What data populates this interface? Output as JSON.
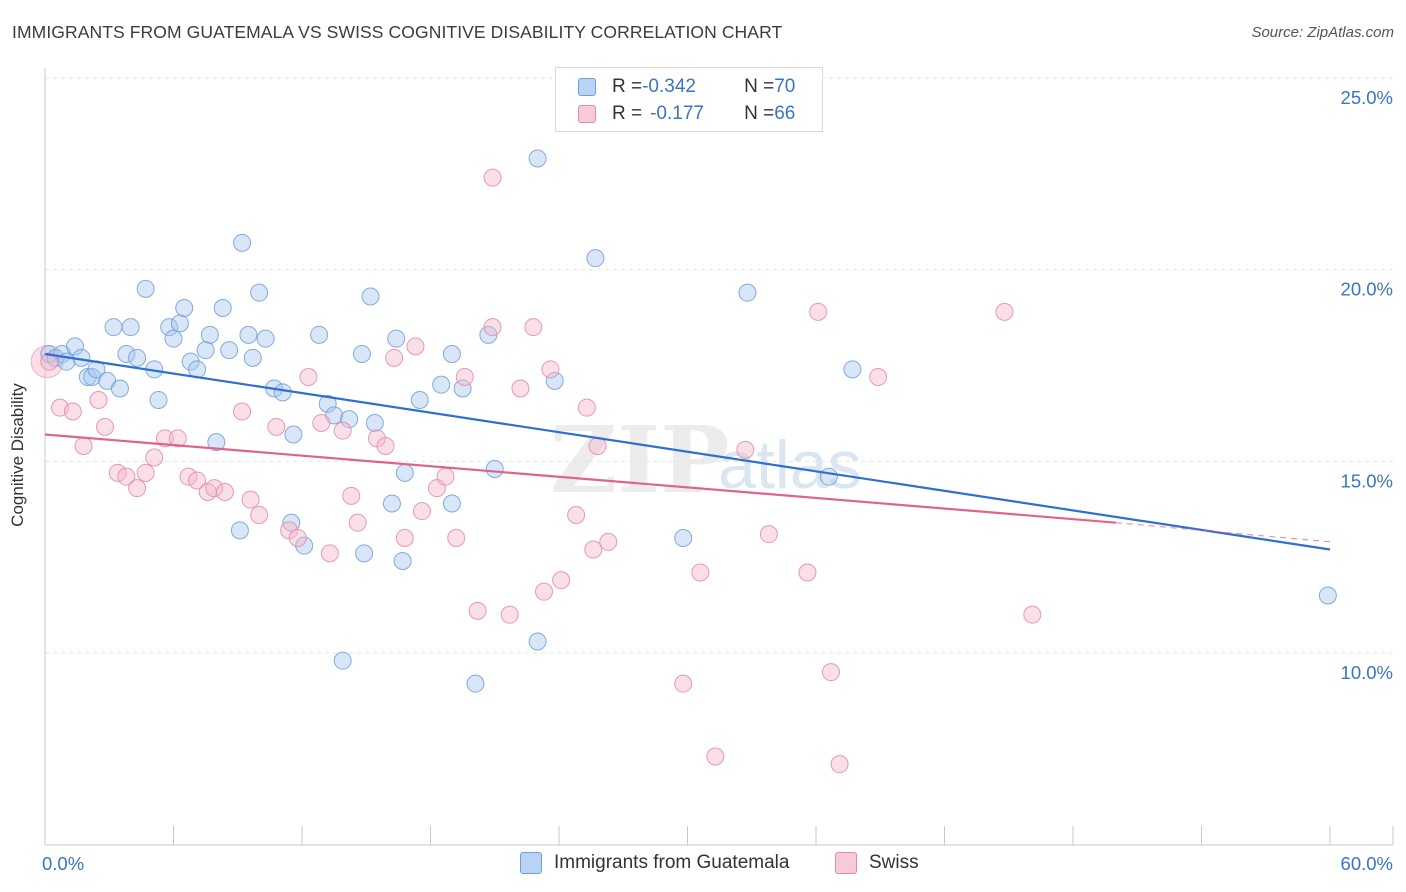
{
  "title": "IMMIGRANTS FROM GUATEMALA VS SWISS COGNITIVE DISABILITY CORRELATION CHART",
  "source": "Source: ZipAtlas.com",
  "watermark": {
    "zip": "ZIP",
    "atlas": "atlas"
  },
  "legend_top": [
    {
      "r_label": "R = ",
      "r_value": "-0.342",
      "n_label": "N = ",
      "n_value": "70"
    },
    {
      "r_label": "R = ",
      "r_value": "-0.177",
      "n_label": "N = ",
      "n_value": "66"
    }
  ],
  "legend_bottom": [
    "Immigrants from Guatemala",
    "Swiss"
  ],
  "colors": {
    "blue_fill": "#a9c8f0",
    "blue_stroke": "#6f9fd8",
    "blue_line": "#2f6fd0",
    "pink_fill": "#f5b8cc",
    "pink_stroke": "#e48aa8",
    "pink_line": "#e0628e",
    "tick_text": "#3a75c4",
    "grid": "#e4e4e4"
  },
  "chart_data": {
    "type": "scatter",
    "title": "IMMIGRANTS FROM GUATEMALA VS SWISS COGNITIVE DISABILITY CORRELATION CHART",
    "xlabel": "",
    "ylabel": "Cognitive Disability",
    "xlim": [
      0,
      60
    ],
    "ylim": [
      5,
      26
    ],
    "x_tick_labels": [
      "0.0%",
      "60.0%"
    ],
    "y_ticks": [
      10,
      15,
      20,
      25
    ],
    "y_tick_labels": [
      "10.0%",
      "15.0%",
      "20.0%",
      "25.0%"
    ],
    "grid": true,
    "legend_position": "top-center",
    "series": [
      {
        "name": "Immigrants from Guatemala",
        "r": -0.342,
        "n": 70,
        "trend": {
          "x": [
            0,
            60
          ],
          "y": [
            17.8,
            12.7
          ]
        },
        "points": [
          [
            0.2,
            17.8
          ],
          [
            0.5,
            17.7
          ],
          [
            0.8,
            17.8
          ],
          [
            1.0,
            17.6
          ],
          [
            1.4,
            18.0
          ],
          [
            1.7,
            17.7
          ],
          [
            2.0,
            17.2
          ],
          [
            2.2,
            17.2
          ],
          [
            2.4,
            17.4
          ],
          [
            2.9,
            17.1
          ],
          [
            3.5,
            16.9
          ],
          [
            3.2,
            18.5
          ],
          [
            3.8,
            17.8
          ],
          [
            4.0,
            18.5
          ],
          [
            4.3,
            17.7
          ],
          [
            4.7,
            19.5
          ],
          [
            5.1,
            17.4
          ],
          [
            5.3,
            16.6
          ],
          [
            5.8,
            18.5
          ],
          [
            6.0,
            18.2
          ],
          [
            6.3,
            18.6
          ],
          [
            6.5,
            19.0
          ],
          [
            6.8,
            17.6
          ],
          [
            7.1,
            17.4
          ],
          [
            7.5,
            17.9
          ],
          [
            7.7,
            18.3
          ],
          [
            8.0,
            15.5
          ],
          [
            8.3,
            19.0
          ],
          [
            8.6,
            17.9
          ],
          [
            9.1,
            13.2
          ],
          [
            9.2,
            20.7
          ],
          [
            9.5,
            18.3
          ],
          [
            9.7,
            17.7
          ],
          [
            10.0,
            19.4
          ],
          [
            10.3,
            18.2
          ],
          [
            10.7,
            16.9
          ],
          [
            11.1,
            16.8
          ],
          [
            11.5,
            13.4
          ],
          [
            11.6,
            15.7
          ],
          [
            12.1,
            12.8
          ],
          [
            12.8,
            18.3
          ],
          [
            13.2,
            16.5
          ],
          [
            13.5,
            16.2
          ],
          [
            13.9,
            9.8
          ],
          [
            14.2,
            16.1
          ],
          [
            14.8,
            17.8
          ],
          [
            14.9,
            12.6
          ],
          [
            15.2,
            19.3
          ],
          [
            15.4,
            16.0
          ],
          [
            16.2,
            13.9
          ],
          [
            16.4,
            18.2
          ],
          [
            16.7,
            12.4
          ],
          [
            16.8,
            14.7
          ],
          [
            17.5,
            16.6
          ],
          [
            18.5,
            17.0
          ],
          [
            19.0,
            17.8
          ],
          [
            19.0,
            13.9
          ],
          [
            19.5,
            16.9
          ],
          [
            20.1,
            9.2
          ],
          [
            20.7,
            18.3
          ],
          [
            21.0,
            14.8
          ],
          [
            23.0,
            10.3
          ],
          [
            23.0,
            22.9
          ],
          [
            23.8,
            17.1
          ],
          [
            25.7,
            20.3
          ],
          [
            29.8,
            13.0
          ],
          [
            32.8,
            19.4
          ],
          [
            36.6,
            14.6
          ],
          [
            37.7,
            17.4
          ],
          [
            59.9,
            11.5
          ]
        ]
      },
      {
        "name": "Swiss",
        "r": -0.177,
        "n": 66,
        "trend": {
          "x": [
            0,
            50
          ],
          "y": [
            15.7,
            13.4
          ]
        },
        "trend_dashed": {
          "x": [
            50,
            60
          ],
          "y": [
            13.4,
            12.9
          ]
        },
        "points": [
          [
            0.2,
            17.6
          ],
          [
            0.7,
            16.4
          ],
          [
            1.3,
            16.3
          ],
          [
            1.8,
            15.4
          ],
          [
            2.5,
            16.6
          ],
          [
            2.8,
            15.9
          ],
          [
            3.4,
            14.7
          ],
          [
            3.8,
            14.6
          ],
          [
            4.3,
            14.3
          ],
          [
            4.7,
            14.7
          ],
          [
            5.1,
            15.1
          ],
          [
            5.6,
            15.6
          ],
          [
            6.2,
            15.6
          ],
          [
            6.7,
            14.6
          ],
          [
            7.1,
            14.5
          ],
          [
            7.6,
            14.2
          ],
          [
            7.9,
            14.3
          ],
          [
            8.4,
            14.2
          ],
          [
            9.2,
            16.3
          ],
          [
            9.6,
            14.0
          ],
          [
            10.0,
            13.6
          ],
          [
            10.8,
            15.9
          ],
          [
            11.4,
            13.2
          ],
          [
            11.8,
            13.0
          ],
          [
            12.3,
            17.2
          ],
          [
            12.9,
            16.0
          ],
          [
            13.3,
            12.6
          ],
          [
            13.9,
            15.8
          ],
          [
            14.3,
            14.1
          ],
          [
            14.6,
            13.4
          ],
          [
            15.5,
            15.6
          ],
          [
            15.9,
            15.4
          ],
          [
            16.3,
            17.7
          ],
          [
            16.8,
            13.0
          ],
          [
            17.3,
            18.0
          ],
          [
            17.6,
            13.7
          ],
          [
            18.3,
            14.3
          ],
          [
            18.7,
            14.6
          ],
          [
            19.2,
            13.0
          ],
          [
            19.6,
            17.2
          ],
          [
            20.2,
            11.1
          ],
          [
            20.9,
            18.5
          ],
          [
            20.9,
            22.4
          ],
          [
            21.7,
            11.0
          ],
          [
            22.2,
            16.9
          ],
          [
            22.8,
            18.5
          ],
          [
            23.3,
            11.6
          ],
          [
            23.6,
            17.4
          ],
          [
            24.1,
            11.9
          ],
          [
            24.8,
            13.6
          ],
          [
            25.3,
            16.4
          ],
          [
            25.6,
            12.7
          ],
          [
            25.8,
            15.4
          ],
          [
            26.3,
            12.9
          ],
          [
            29.8,
            9.2
          ],
          [
            30.6,
            12.1
          ],
          [
            31.3,
            7.3
          ],
          [
            32.7,
            15.3
          ],
          [
            33.8,
            13.1
          ],
          [
            35.6,
            12.1
          ],
          [
            36.1,
            18.9
          ],
          [
            36.7,
            9.5
          ],
          [
            37.1,
            7.1
          ],
          [
            38.9,
            17.2
          ],
          [
            44.8,
            18.9
          ],
          [
            46.1,
            11.0
          ]
        ]
      }
    ]
  }
}
